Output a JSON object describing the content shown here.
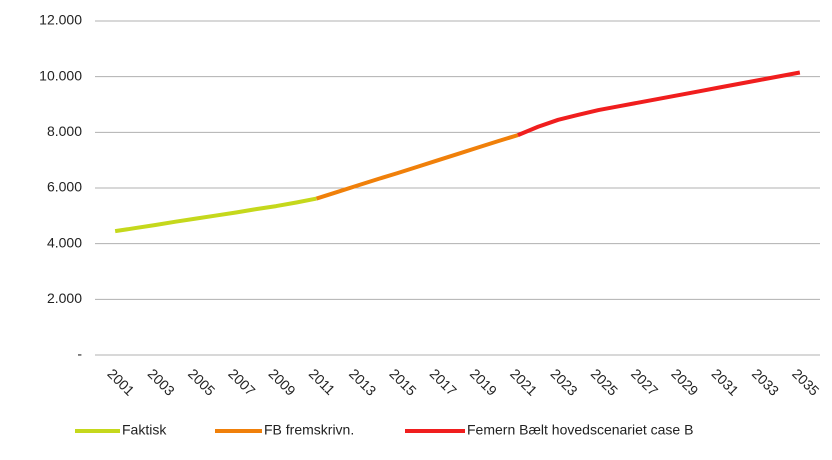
{
  "chart_data": {
    "type": "line",
    "x": [
      2001,
      2002,
      2003,
      2004,
      2005,
      2006,
      2007,
      2008,
      2009,
      2010,
      2011,
      2012,
      2013,
      2014,
      2015,
      2016,
      2017,
      2018,
      2019,
      2020,
      2021,
      2022,
      2023,
      2024,
      2025,
      2026,
      2027,
      2028,
      2029,
      2030,
      2031,
      2032,
      2033,
      2034,
      2035
    ],
    "series": [
      {
        "name": "Faktisk",
        "color": "#c5d81c",
        "values": [
          4450,
          4560,
          4670,
          4790,
          4900,
          5010,
          5120,
          5240,
          5350,
          5480,
          5620,
          null,
          null,
          null,
          null,
          null,
          null,
          null,
          null,
          null,
          null,
          null,
          null,
          null,
          null,
          null,
          null,
          null,
          null,
          null,
          null,
          null,
          null,
          null,
          null
        ]
      },
      {
        "name": "FB fremskrivn.",
        "color": "#f0800a",
        "values": [
          null,
          null,
          null,
          null,
          null,
          null,
          null,
          null,
          null,
          null,
          5620,
          5850,
          6080,
          6310,
          6530,
          6760,
          6990,
          7220,
          7450,
          7680,
          7900,
          null,
          null,
          null,
          null,
          null,
          null,
          null,
          null,
          null,
          null,
          null,
          null,
          null,
          null
        ]
      },
      {
        "name": "Femern Bælt hovedscenariet case B",
        "color": "#f01e1e",
        "values": [
          null,
          null,
          null,
          null,
          null,
          null,
          null,
          null,
          null,
          null,
          null,
          null,
          null,
          null,
          null,
          null,
          null,
          null,
          null,
          null,
          7900,
          8200,
          8450,
          8630,
          8800,
          8935,
          9070,
          9205,
          9340,
          9475,
          9610,
          9745,
          9880,
          10015,
          10150
        ]
      }
    ],
    "xlim": [
      2000,
      2036
    ],
    "xticks": [
      2001,
      2003,
      2005,
      2007,
      2009,
      2011,
      2013,
      2015,
      2017,
      2019,
      2021,
      2023,
      2025,
      2027,
      2029,
      2031,
      2033,
      2035
    ],
    "ylim": [
      0,
      12000
    ],
    "yticks": [
      {
        "value": 0,
        "label": "-"
      },
      {
        "value": 2000,
        "label": "2.000"
      },
      {
        "value": 4000,
        "label": "4.000"
      },
      {
        "value": 6000,
        "label": "6.000"
      },
      {
        "value": 8000,
        "label": "8.000"
      },
      {
        "value": 10000,
        "label": "10.000"
      },
      {
        "value": 12000,
        "label": "12.000"
      }
    ],
    "grid": true,
    "legend": "bottom"
  }
}
